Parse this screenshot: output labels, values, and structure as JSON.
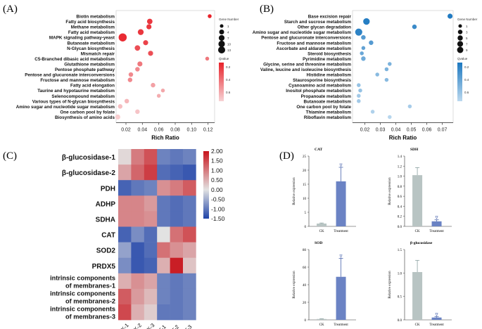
{
  "panel_labels": {
    "a": "(A)",
    "b": "(B)",
    "c": "(C)",
    "d": "(D)"
  },
  "colors": {
    "bubble_red_high": "#e8222a",
    "bubble_red_low": "#f7d3d5",
    "bubble_blue_high": "#1c78c0",
    "bubble_blue_low": "#bcd9ef",
    "heat_high": "#c8141c",
    "heat_mid": "#e2e2e2",
    "heat_low": "#1f43a8",
    "bar_ck": "#b8c4c3",
    "bar_treatment": "#6b83c4"
  },
  "chart_data": [
    {
      "id": "A",
      "type": "scatter",
      "xlabel": "Rich Ratio",
      "xlim": [
        0.008,
        0.128
      ],
      "xticks": [
        0.02,
        0.04,
        0.06,
        0.08,
        0.1,
        0.12
      ],
      "xtick_labels": [
        "0.02",
        "0.04",
        "0.06",
        "0.08",
        "0.10",
        "0.12"
      ],
      "legend_size_title": "Gene Number",
      "legend_sizes": [
        1,
        4,
        7,
        10,
        13
      ],
      "legend_color_title": "Qvalue",
      "legend_color_ticks": [
        "0.2",
        "0.4",
        "0.6"
      ],
      "color_range": [
        0.05,
        0.65
      ],
      "terms": [
        {
          "name": "Biotin metabolism",
          "ratio": 0.122,
          "genes": 1,
          "q": 0.05
        },
        {
          "name": "Fatty acid biosynthesis",
          "ratio": 0.049,
          "genes": 4,
          "q": 0.12
        },
        {
          "name": "Methane metabolism",
          "ratio": 0.048,
          "genes": 3,
          "q": 0.12
        },
        {
          "name": "Fatty acid metabolism",
          "ratio": 0.038,
          "genes": 5,
          "q": 0.12
        },
        {
          "name": "MAPK signaling pathway-yeast",
          "ratio": 0.016,
          "genes": 13,
          "q": 0.08
        },
        {
          "name": "Butanoate metabolism",
          "ratio": 0.044,
          "genes": 3,
          "q": 0.16
        },
        {
          "name": "N-Glycan biosynthesis",
          "ratio": 0.034,
          "genes": 4,
          "q": 0.2
        },
        {
          "name": "Mismatch repair",
          "ratio": 0.05,
          "genes": 3,
          "q": 0.2
        },
        {
          "name": "C5-Branched dibasic acid metabolism",
          "ratio": 0.119,
          "genes": 1,
          "q": 0.34
        },
        {
          "name": "Glutathione metabolism",
          "ratio": 0.037,
          "genes": 3,
          "q": 0.34
        },
        {
          "name": "Pentose phosphate pathway",
          "ratio": 0.034,
          "genes": 2,
          "q": 0.4
        },
        {
          "name": "Pentose and glucuronate interconversions",
          "ratio": 0.026,
          "genes": 2,
          "q": 0.4
        },
        {
          "name": "Fructose and mannose metabolism",
          "ratio": 0.025,
          "genes": 2,
          "q": 0.4
        },
        {
          "name": "Fatty acid elongation",
          "ratio": 0.053,
          "genes": 2,
          "q": 0.48
        },
        {
          "name": "Taurine and hypotaurine metabolism",
          "ratio": 0.065,
          "genes": 1,
          "q": 0.5
        },
        {
          "name": "Selenocompound metabolism",
          "ratio": 0.06,
          "genes": 1,
          "q": 0.52
        },
        {
          "name": "Various types of N-glycan biosynthesis",
          "ratio": 0.021,
          "genes": 2,
          "q": 0.55
        },
        {
          "name": "Amino sugar and nucleotide sugar metabolism",
          "ratio": 0.013,
          "genes": 2,
          "q": 0.58
        },
        {
          "name": "One carbon pool by folate",
          "ratio": 0.034,
          "genes": 2,
          "q": 0.6
        },
        {
          "name": "Biosynthesis of amino acids",
          "ratio": 0.01,
          "genes": 3,
          "q": 0.63
        }
      ]
    },
    {
      "id": "B",
      "type": "scatter",
      "xlabel": "Rich Ratio",
      "xlim": [
        0.012,
        0.077
      ],
      "xticks": [
        0.02,
        0.03,
        0.04,
        0.05,
        0.06,
        0.07
      ],
      "xtick_labels": [
        "0.02",
        "0.03",
        "0.04",
        "0.05",
        "0.06",
        "0.07"
      ],
      "legend_size_title": "Gene Number",
      "legend_sizes": [
        1,
        3,
        5,
        7,
        9
      ],
      "legend_color_title": "Qvalue",
      "legend_color_ticks": [
        "0.2",
        "0.4",
        "0.6"
      ],
      "color_range": [
        0.08,
        0.7
      ],
      "terms": [
        {
          "name": "Base excision repair",
          "ratio": 0.075,
          "genes": 3,
          "q": 0.1
        },
        {
          "name": "Starch and sucrose metabolism",
          "ratio": 0.021,
          "genes": 7,
          "q": 0.12
        },
        {
          "name": "Other glycan degradation",
          "ratio": 0.052,
          "genes": 2,
          "q": 0.2
        },
        {
          "name": "Amino sugar and nucleotide sugar metabolism",
          "ratio": 0.016,
          "genes": 9,
          "q": 0.15
        },
        {
          "name": "Pentose and glucuronate interconversions",
          "ratio": 0.019,
          "genes": 2,
          "q": 0.3
        },
        {
          "name": "Fructose and mannose metabolism",
          "ratio": 0.024,
          "genes": 2,
          "q": 0.3
        },
        {
          "name": "Ascorbate and aldarate metabolism",
          "ratio": 0.019,
          "genes": 1,
          "q": 0.35
        },
        {
          "name": "Steroid biosynthesis",
          "ratio": 0.018,
          "genes": 1,
          "q": 0.38
        },
        {
          "name": "Pyrimidine metabolism",
          "ratio": 0.019,
          "genes": 2,
          "q": 0.4
        },
        {
          "name": "Glycine, serine and threonine metabolism",
          "ratio": 0.036,
          "genes": 1,
          "q": 0.45
        },
        {
          "name": "Valine, leucine and isoleucine biosynthesis",
          "ratio": 0.034,
          "genes": 1,
          "q": 0.45
        },
        {
          "name": "Histidine metabolism",
          "ratio": 0.028,
          "genes": 1,
          "q": 0.5
        },
        {
          "name": "Staurosporine biosynthesis",
          "ratio": 0.034,
          "genes": 1,
          "q": 0.5
        },
        {
          "name": "Cyanoamino acid metabolism",
          "ratio": 0.016,
          "genes": 1,
          "q": 0.55
        },
        {
          "name": "Inositol phosphate metabolism",
          "ratio": 0.017,
          "genes": 1,
          "q": 0.55
        },
        {
          "name": "Propanoate metabolism",
          "ratio": 0.016,
          "genes": 1,
          "q": 0.6
        },
        {
          "name": "Butanoate metabolism",
          "ratio": 0.016,
          "genes": 1,
          "q": 0.6
        },
        {
          "name": "One carbon pool by folate",
          "ratio": 0.049,
          "genes": 1,
          "q": 0.62
        },
        {
          "name": "Thiamine metabolism",
          "ratio": 0.025,
          "genes": 1,
          "q": 0.65
        },
        {
          "name": "Riboflavin metabolism",
          "ratio": 0.036,
          "genes": 1,
          "q": 0.68
        }
      ]
    },
    {
      "id": "C",
      "type": "heatmap",
      "columns": [
        "CK-1",
        "CK-2",
        "CK-3",
        "T-1",
        "T-2",
        "T-3"
      ],
      "rows": [
        "β-glucosidase-1",
        "β-glucosidase-2",
        "PDH",
        "ADHP",
        "SDHA",
        "CAT",
        "SOD2",
        "PRDX5",
        "intrinsic components of membranes-1",
        "intrinsic components of membranes-2",
        "intrinsic components of membranes-3"
      ],
      "row_lines": [
        [
          "β-glucosidase-1"
        ],
        [
          "β-glucosidase-2"
        ],
        [
          "PDH"
        ],
        [
          "ADHP"
        ],
        [
          "SDHA"
        ],
        [
          "CAT"
        ],
        [
          "SOD2"
        ],
        [
          "PRDX5"
        ],
        [
          "intrinsic components",
          "of membranes-1"
        ],
        [
          "intrinsic components",
          "of membranes-2"
        ],
        [
          "intrinsic components",
          "of membranes-3"
        ]
      ],
      "values": [
        [
          0.1,
          1.0,
          1.4,
          -0.9,
          -1.0,
          -0.9
        ],
        [
          0.6,
          1.2,
          1.6,
          -1.1,
          -1.2,
          -1.3
        ],
        [
          -1.2,
          -1.0,
          -0.9,
          0.8,
          1.0,
          1.3
        ],
        [
          0.9,
          0.9,
          0.7,
          -1.0,
          -1.1,
          -1.0
        ],
        [
          0.9,
          0.9,
          0.8,
          -1.0,
          -1.1,
          -1.0
        ],
        [
          -1.2,
          -0.8,
          -1.1,
          0.0,
          1.1,
          1.4
        ],
        [
          -0.6,
          -1.3,
          -1.1,
          1.1,
          0.8,
          0.6
        ],
        [
          -0.8,
          -1.3,
          -1.2,
          0.5,
          1.9,
          0.3
        ],
        [
          0.5,
          0.8,
          0.6,
          -0.9,
          -1.0,
          -0.9
        ],
        [
          1.3,
          0.7,
          0.4,
          -0.9,
          -1.0,
          -0.9
        ],
        [
          1.5,
          0.5,
          0.2,
          -1.0,
          -1.0,
          -0.9
        ]
      ],
      "colorbar_range": [
        -1.5,
        2.0
      ],
      "colorbar_ticks": [
        "2.00",
        "1.50",
        "1.00",
        "0.50",
        "0.00",
        "-0.50",
        "-1.00",
        "-1.50"
      ]
    },
    {
      "id": "D",
      "type": "bar",
      "ylabel": "Relative expression",
      "categories": [
        "CK",
        "Treatment"
      ],
      "subplots": [
        {
          "title": "CAT",
          "values": [
            1.0,
            16.0
          ],
          "errors": [
            0.2,
            5.0
          ],
          "ylim": [
            0,
            25
          ],
          "yticks": [
            "0",
            "5",
            "10",
            "15",
            "20",
            "25"
          ],
          "mark": "∇"
        },
        {
          "title": "SDH",
          "values": [
            1.02,
            0.1
          ],
          "errors": [
            0.15,
            0.03
          ],
          "ylim": [
            0,
            1.4
          ],
          "yticks": [
            "0.0",
            "0.2",
            "0.4",
            "0.6",
            "0.8",
            "1.0",
            "1.2",
            "1.4"
          ],
          "mark": "∇"
        },
        {
          "title": "SOD",
          "values": [
            1.0,
            49.0
          ],
          "errors": [
            0.3,
            21.0
          ],
          "ylim": [
            0,
            80
          ],
          "yticks": [
            "0",
            "20",
            "40",
            "60",
            "80"
          ],
          "mark": "∇"
        },
        {
          "title": "β-glucosidase",
          "values": [
            1.02,
            0.05
          ],
          "errors": [
            0.25,
            0.02
          ],
          "ylim": [
            0,
            1.5
          ],
          "yticks": [
            "0.0",
            "0.5",
            "1.0",
            "1.5"
          ],
          "mark": "∇"
        }
      ]
    }
  ]
}
